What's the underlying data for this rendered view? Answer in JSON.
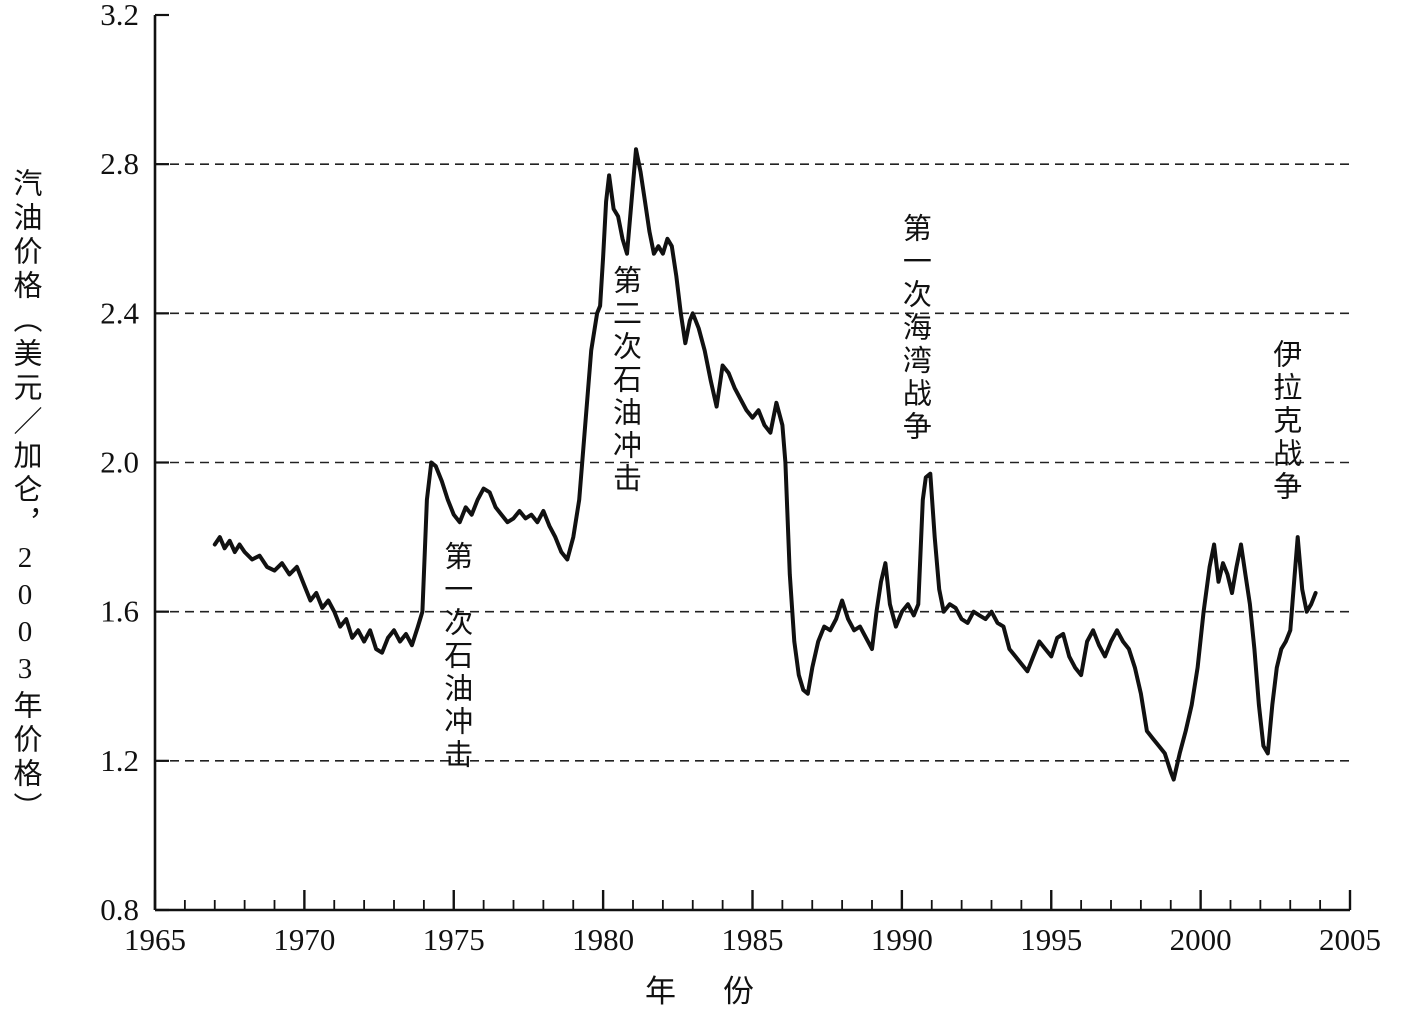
{
  "figure": {
    "background": "#ffffff",
    "line_color": "#111111",
    "grid_color": "#222222"
  },
  "chart_data": {
    "type": "line",
    "title": "",
    "xlabel": "年　份",
    "ylabel": "汽油价格（美元／加仑，2003年价格）",
    "xlim": [
      1965,
      2005
    ],
    "ylim": [
      0.8,
      3.2
    ],
    "x_major_ticks": [
      1965,
      1970,
      1975,
      1980,
      1985,
      1990,
      1995,
      2000,
      2005
    ],
    "x_minor_step": 1,
    "y_ticks": [
      0.8,
      1.2,
      1.6,
      2.0,
      2.4,
      2.8,
      3.2
    ],
    "gridlines_y": [
      1.2,
      1.6,
      2.0,
      2.4,
      2.8
    ],
    "legend": "none",
    "grid": "dashed-horizontal",
    "series": [
      {
        "name": "汽油价格",
        "points": [
          [
            1967.0,
            1.78
          ],
          [
            1967.17,
            1.8
          ],
          [
            1967.33,
            1.77
          ],
          [
            1967.5,
            1.79
          ],
          [
            1967.67,
            1.76
          ],
          [
            1967.83,
            1.78
          ],
          [
            1968.0,
            1.76
          ],
          [
            1968.25,
            1.74
          ],
          [
            1968.5,
            1.75
          ],
          [
            1968.75,
            1.72
          ],
          [
            1969.0,
            1.71
          ],
          [
            1969.25,
            1.73
          ],
          [
            1969.5,
            1.7
          ],
          [
            1969.75,
            1.72
          ],
          [
            1970.0,
            1.67
          ],
          [
            1970.2,
            1.63
          ],
          [
            1970.4,
            1.65
          ],
          [
            1970.6,
            1.61
          ],
          [
            1970.8,
            1.63
          ],
          [
            1971.0,
            1.6
          ],
          [
            1971.2,
            1.56
          ],
          [
            1971.4,
            1.58
          ],
          [
            1971.6,
            1.53
          ],
          [
            1971.8,
            1.55
          ],
          [
            1972.0,
            1.52
          ],
          [
            1972.2,
            1.55
          ],
          [
            1972.4,
            1.5
          ],
          [
            1972.6,
            1.49
          ],
          [
            1972.8,
            1.53
          ],
          [
            1973.0,
            1.55
          ],
          [
            1973.2,
            1.52
          ],
          [
            1973.4,
            1.54
          ],
          [
            1973.6,
            1.51
          ],
          [
            1973.8,
            1.56
          ],
          [
            1973.95,
            1.6
          ],
          [
            1974.1,
            1.9
          ],
          [
            1974.25,
            2.0
          ],
          [
            1974.4,
            1.99
          ],
          [
            1974.6,
            1.95
          ],
          [
            1974.8,
            1.9
          ],
          [
            1975.0,
            1.86
          ],
          [
            1975.2,
            1.84
          ],
          [
            1975.4,
            1.88
          ],
          [
            1975.6,
            1.86
          ],
          [
            1975.8,
            1.9
          ],
          [
            1976.0,
            1.93
          ],
          [
            1976.2,
            1.92
          ],
          [
            1976.4,
            1.88
          ],
          [
            1976.6,
            1.86
          ],
          [
            1976.8,
            1.84
          ],
          [
            1977.0,
            1.85
          ],
          [
            1977.2,
            1.87
          ],
          [
            1977.4,
            1.85
          ],
          [
            1977.6,
            1.86
          ],
          [
            1977.8,
            1.84
          ],
          [
            1978.0,
            1.87
          ],
          [
            1978.2,
            1.83
          ],
          [
            1978.4,
            1.8
          ],
          [
            1978.6,
            1.76
          ],
          [
            1978.8,
            1.74
          ],
          [
            1979.0,
            1.8
          ],
          [
            1979.2,
            1.9
          ],
          [
            1979.4,
            2.1
          ],
          [
            1979.6,
            2.3
          ],
          [
            1979.8,
            2.4
          ],
          [
            1979.9,
            2.42
          ],
          [
            1980.0,
            2.55
          ],
          [
            1980.1,
            2.7
          ],
          [
            1980.2,
            2.77
          ],
          [
            1980.35,
            2.68
          ],
          [
            1980.5,
            2.66
          ],
          [
            1980.65,
            2.6
          ],
          [
            1980.8,
            2.56
          ],
          [
            1980.95,
            2.7
          ],
          [
            1981.1,
            2.84
          ],
          [
            1981.25,
            2.78
          ],
          [
            1981.4,
            2.7
          ],
          [
            1981.55,
            2.62
          ],
          [
            1981.7,
            2.56
          ],
          [
            1981.85,
            2.58
          ],
          [
            1982.0,
            2.56
          ],
          [
            1982.15,
            2.6
          ],
          [
            1982.3,
            2.58
          ],
          [
            1982.45,
            2.5
          ],
          [
            1982.6,
            2.4
          ],
          [
            1982.75,
            2.32
          ],
          [
            1982.9,
            2.38
          ],
          [
            1983.0,
            2.4
          ],
          [
            1983.2,
            2.36
          ],
          [
            1983.4,
            2.3
          ],
          [
            1983.6,
            2.22
          ],
          [
            1983.8,
            2.15
          ],
          [
            1984.0,
            2.26
          ],
          [
            1984.2,
            2.24
          ],
          [
            1984.4,
            2.2
          ],
          [
            1984.6,
            2.17
          ],
          [
            1984.8,
            2.14
          ],
          [
            1985.0,
            2.12
          ],
          [
            1985.2,
            2.14
          ],
          [
            1985.4,
            2.1
          ],
          [
            1985.6,
            2.08
          ],
          [
            1985.8,
            2.16
          ],
          [
            1986.0,
            2.1
          ],
          [
            1986.1,
            2.0
          ],
          [
            1986.25,
            1.7
          ],
          [
            1986.4,
            1.52
          ],
          [
            1986.55,
            1.43
          ],
          [
            1986.7,
            1.39
          ],
          [
            1986.85,
            1.38
          ],
          [
            1987.0,
            1.45
          ],
          [
            1987.2,
            1.52
          ],
          [
            1987.4,
            1.56
          ],
          [
            1987.6,
            1.55
          ],
          [
            1987.8,
            1.58
          ],
          [
            1988.0,
            1.63
          ],
          [
            1988.2,
            1.58
          ],
          [
            1988.4,
            1.55
          ],
          [
            1988.6,
            1.56
          ],
          [
            1988.8,
            1.53
          ],
          [
            1989.0,
            1.5
          ],
          [
            1989.15,
            1.6
          ],
          [
            1989.3,
            1.68
          ],
          [
            1989.45,
            1.73
          ],
          [
            1989.6,
            1.62
          ],
          [
            1989.8,
            1.56
          ],
          [
            1990.0,
            1.6
          ],
          [
            1990.2,
            1.62
          ],
          [
            1990.4,
            1.59
          ],
          [
            1990.55,
            1.62
          ],
          [
            1990.7,
            1.9
          ],
          [
            1990.8,
            1.96
          ],
          [
            1990.95,
            1.97
          ],
          [
            1991.1,
            1.8
          ],
          [
            1991.25,
            1.66
          ],
          [
            1991.4,
            1.6
          ],
          [
            1991.6,
            1.62
          ],
          [
            1991.8,
            1.61
          ],
          [
            1992.0,
            1.58
          ],
          [
            1992.2,
            1.57
          ],
          [
            1992.4,
            1.6
          ],
          [
            1992.6,
            1.59
          ],
          [
            1992.8,
            1.58
          ],
          [
            1993.0,
            1.6
          ],
          [
            1993.2,
            1.57
          ],
          [
            1993.4,
            1.56
          ],
          [
            1993.6,
            1.5
          ],
          [
            1993.8,
            1.48
          ],
          [
            1994.0,
            1.46
          ],
          [
            1994.2,
            1.44
          ],
          [
            1994.4,
            1.48
          ],
          [
            1994.6,
            1.52
          ],
          [
            1994.8,
            1.5
          ],
          [
            1995.0,
            1.48
          ],
          [
            1995.2,
            1.53
          ],
          [
            1995.4,
            1.54
          ],
          [
            1995.6,
            1.48
          ],
          [
            1995.8,
            1.45
          ],
          [
            1996.0,
            1.43
          ],
          [
            1996.2,
            1.52
          ],
          [
            1996.4,
            1.55
          ],
          [
            1996.6,
            1.51
          ],
          [
            1996.8,
            1.48
          ],
          [
            1997.0,
            1.52
          ],
          [
            1997.2,
            1.55
          ],
          [
            1997.4,
            1.52
          ],
          [
            1997.6,
            1.5
          ],
          [
            1997.8,
            1.45
          ],
          [
            1998.0,
            1.38
          ],
          [
            1998.2,
            1.28
          ],
          [
            1998.4,
            1.26
          ],
          [
            1998.6,
            1.24
          ],
          [
            1998.8,
            1.22
          ],
          [
            1999.0,
            1.17
          ],
          [
            1999.1,
            1.15
          ],
          [
            1999.3,
            1.22
          ],
          [
            1999.5,
            1.28
          ],
          [
            1999.7,
            1.35
          ],
          [
            1999.9,
            1.45
          ],
          [
            2000.1,
            1.6
          ],
          [
            2000.3,
            1.72
          ],
          [
            2000.45,
            1.78
          ],
          [
            2000.6,
            1.68
          ],
          [
            2000.75,
            1.73
          ],
          [
            2000.9,
            1.7
          ],
          [
            2001.05,
            1.65
          ],
          [
            2001.2,
            1.72
          ],
          [
            2001.35,
            1.78
          ],
          [
            2001.5,
            1.7
          ],
          [
            2001.65,
            1.62
          ],
          [
            2001.8,
            1.5
          ],
          [
            2001.95,
            1.35
          ],
          [
            2002.1,
            1.24
          ],
          [
            2002.25,
            1.22
          ],
          [
            2002.4,
            1.35
          ],
          [
            2002.55,
            1.45
          ],
          [
            2002.7,
            1.5
          ],
          [
            2002.85,
            1.52
          ],
          [
            2003.0,
            1.55
          ],
          [
            2003.15,
            1.7
          ],
          [
            2003.25,
            1.8
          ],
          [
            2003.4,
            1.66
          ],
          [
            2003.55,
            1.6
          ],
          [
            2003.7,
            1.62
          ],
          [
            2003.85,
            1.65
          ]
        ]
      }
    ],
    "annotations": [
      {
        "slug": "first-oil-shock",
        "label": "第一次石油冲击",
        "x": 1975.05,
        "y": 1.79
      },
      {
        "slug": "second-oil-shock",
        "label": "第二次石油冲击",
        "x": 1980.7,
        "y": 2.53
      },
      {
        "slug": "first-gulf-war",
        "label": "第一次海湾战争",
        "x": 1990.4,
        "y": 2.67
      },
      {
        "slug": "iraq-war",
        "label": "伊拉克战争",
        "x": 2002.8,
        "y": 2.33
      }
    ]
  }
}
